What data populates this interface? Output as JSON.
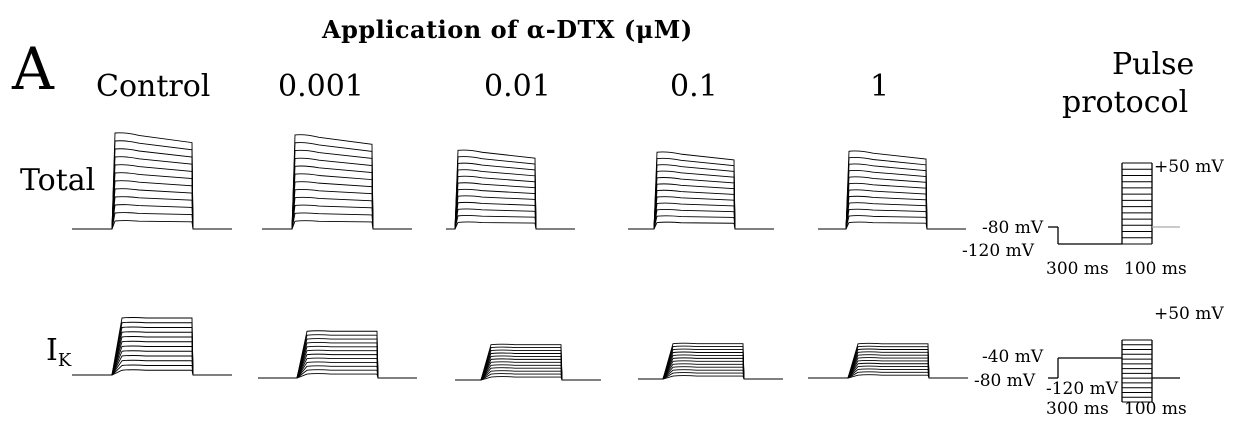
{
  "figure": {
    "panel_label": "A",
    "title": "Application of α-DTX (μM)",
    "columns": [
      "Control",
      "0.001",
      "0.01",
      "0.1",
      "1"
    ],
    "rows": {
      "total": "Total",
      "ik_main": "I",
      "ik_sub": "K"
    },
    "protocol_title_line1": "Pulse",
    "protocol_title_line2": "protocol",
    "protocol_total": {
      "test_label": "+50 mV",
      "hold_label": "-80 mV",
      "pre_label": "-120 mV",
      "pre_duration": "300 ms",
      "test_duration": "100 ms"
    },
    "protocol_ik": {
      "test_label": "+50 mV",
      "pre_label": "-40 mV",
      "hold_label": "-80 mV",
      "low_label": "-120 mV",
      "pre_duration": "300 ms",
      "test_duration": "100 ms"
    },
    "traces": {
      "total_relative_amplitude": [
        1.0,
        0.98,
        0.82,
        0.8,
        0.81
      ],
      "ik_relative_amplitude": [
        1.0,
        0.82,
        0.62,
        0.62,
        0.6
      ],
      "sweeps_per_family": 12
    }
  }
}
